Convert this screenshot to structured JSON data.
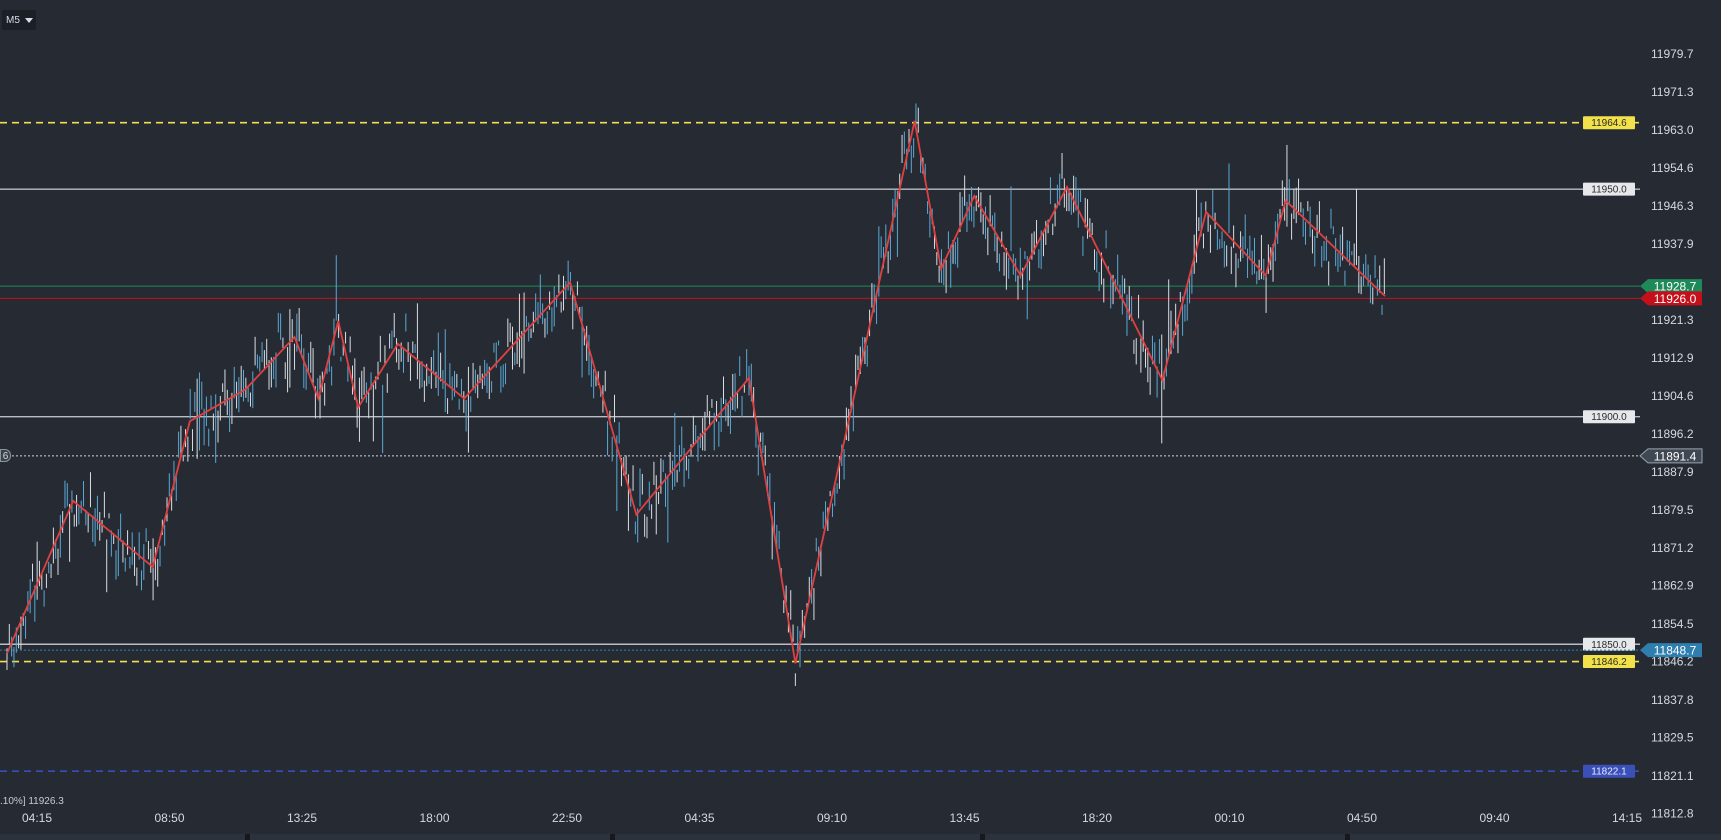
{
  "toolbar": {
    "timeframe": "M5",
    "timeframe_icon": "chevron-down-icon"
  },
  "info_text": ".10%] 11926.3",
  "cursor_tag": "6",
  "colors": {
    "background": "#262b33",
    "candle_up": "#5aa9d6",
    "candle_down": "#d8dde3",
    "zigzag": "#e04040",
    "dashed_yellow": "#f2e14a",
    "dashed_blue": "#3b4fb8",
    "solid_gray": "#b9bec6",
    "ask_green": "#1e8a5a",
    "bid_red": "#c4101a",
    "blue_tag": "#2e7fb0"
  },
  "chart_data": {
    "type": "candlestick",
    "instrument_timeframe": "M5",
    "y_axis": {
      "ticks": [
        "11979.7",
        "11971.3",
        "11963.0",
        "11954.6",
        "11946.3",
        "11937.9",
        "11921.3",
        "11912.9",
        "11904.6",
        "11896.2",
        "11887.9",
        "11879.5",
        "11871.2",
        "11862.9",
        "11854.5",
        "11846.2",
        "11837.8",
        "11829.5",
        "11821.1",
        "11812.8"
      ],
      "range": [
        11812.8,
        11983.0
      ]
    },
    "x_axis": {
      "ticks": [
        "04:15",
        "08:50",
        "13:25",
        "18:00",
        "22:50",
        "04:35",
        "09:10",
        "13:45",
        "18:20",
        "00:10",
        "04:50",
        "09:40",
        "14:15"
      ]
    },
    "levels": [
      {
        "name": "11964.6",
        "price": 11964.6,
        "style": "dashed",
        "color": "yellow"
      },
      {
        "name": "11950.0",
        "price": 11950.0,
        "style": "solid",
        "color": "gray"
      },
      {
        "name": "11900.0",
        "price": 11900.0,
        "style": "solid",
        "color": "gray"
      },
      {
        "name": "11850.0",
        "price": 11850.0,
        "style": "solid",
        "color": "gray"
      },
      {
        "name": "11846.2",
        "price": 11846.2,
        "style": "dashed",
        "color": "yellow"
      },
      {
        "name": "11822.1",
        "price": 11822.1,
        "style": "dashed",
        "color": "blue"
      }
    ],
    "price_tags": [
      {
        "label": "11928.7",
        "price": 11928.7,
        "kind": "ask",
        "color": "green"
      },
      {
        "label": "11926.0",
        "price": 11926.0,
        "kind": "bid",
        "color": "red"
      },
      {
        "label": "11891.4",
        "price": 11891.4,
        "kind": "crosshair",
        "color": "gray"
      },
      {
        "label": "11848.7",
        "price": 11848.7,
        "kind": "marker",
        "color": "blue"
      }
    ],
    "zigzag": [
      [
        0,
        11848.0
      ],
      [
        0.5,
        11881.5
      ],
      [
        1.1,
        11867.0
      ],
      [
        1.38,
        11899.0
      ],
      [
        1.8,
        11906.0
      ],
      [
        2.17,
        11917.5
      ],
      [
        2.35,
        11904.0
      ],
      [
        2.5,
        11921.0
      ],
      [
        2.65,
        11902.0
      ],
      [
        2.95,
        11916.0
      ],
      [
        3.45,
        11904.0
      ],
      [
        4.25,
        11929.5
      ],
      [
        4.75,
        11878.5
      ],
      [
        5.6,
        11908.5
      ],
      [
        5.95,
        11845.8
      ],
      [
        6.85,
        11965.0
      ],
      [
        7.05,
        11932.5
      ],
      [
        7.3,
        11948.5
      ],
      [
        7.65,
        11931.0
      ],
      [
        8.0,
        11950.5
      ],
      [
        8.72,
        11908.0
      ],
      [
        9.05,
        11945.0
      ],
      [
        9.5,
        11931.0
      ],
      [
        9.65,
        11947.5
      ],
      [
        10.4,
        11926.5
      ]
    ],
    "candles_generated_from": "zigzag path, visual approximation"
  }
}
